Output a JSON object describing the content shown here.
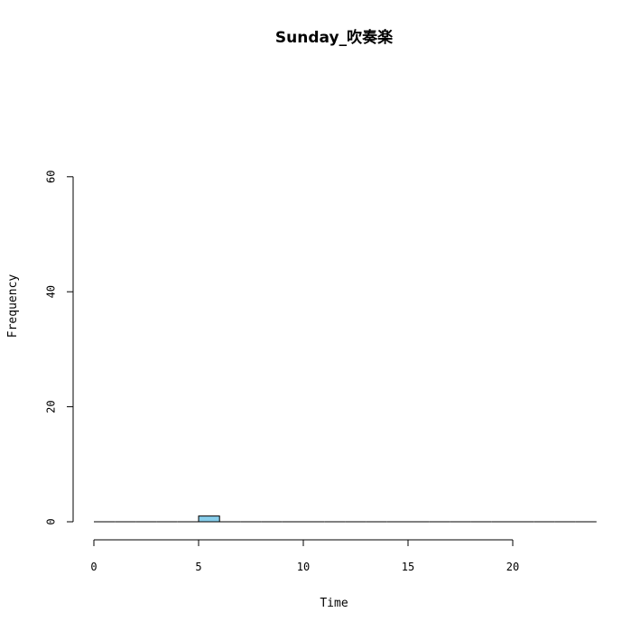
{
  "chart_data": {
    "type": "bar",
    "title": "Sunday_吹奏楽",
    "xlabel": "Time",
    "ylabel": "Frequency",
    "xlim": [
      0,
      24
    ],
    "ylim": [
      0,
      60
    ],
    "x_ticks": [
      0,
      5,
      10,
      15,
      20
    ],
    "y_ticks": [
      0,
      20,
      40,
      60
    ],
    "bar_color": "#87CEEB",
    "bins": [
      {
        "start": 0,
        "end": 1,
        "count": 0
      },
      {
        "start": 1,
        "end": 2,
        "count": 0
      },
      {
        "start": 2,
        "end": 3,
        "count": 0
      },
      {
        "start": 3,
        "end": 4,
        "count": 0
      },
      {
        "start": 4,
        "end": 5,
        "count": 0
      },
      {
        "start": 5,
        "end": 6,
        "count": 1
      },
      {
        "start": 6,
        "end": 7,
        "count": 0
      },
      {
        "start": 7,
        "end": 8,
        "count": 0
      },
      {
        "start": 8,
        "end": 9,
        "count": 0
      },
      {
        "start": 9,
        "end": 10,
        "count": 0
      },
      {
        "start": 10,
        "end": 11,
        "count": 0
      },
      {
        "start": 11,
        "end": 12,
        "count": 0
      },
      {
        "start": 12,
        "end": 13,
        "count": 0
      },
      {
        "start": 13,
        "end": 14,
        "count": 0
      },
      {
        "start": 14,
        "end": 15,
        "count": 0
      },
      {
        "start": 15,
        "end": 16,
        "count": 0
      },
      {
        "start": 16,
        "end": 17,
        "count": 0
      },
      {
        "start": 17,
        "end": 18,
        "count": 0
      },
      {
        "start": 18,
        "end": 19,
        "count": 0
      },
      {
        "start": 19,
        "end": 20,
        "count": 0
      },
      {
        "start": 20,
        "end": 21,
        "count": 0
      },
      {
        "start": 21,
        "end": 22,
        "count": 0
      },
      {
        "start": 22,
        "end": 23,
        "count": 0
      },
      {
        "start": 23,
        "end": 24,
        "count": 0
      }
    ]
  }
}
